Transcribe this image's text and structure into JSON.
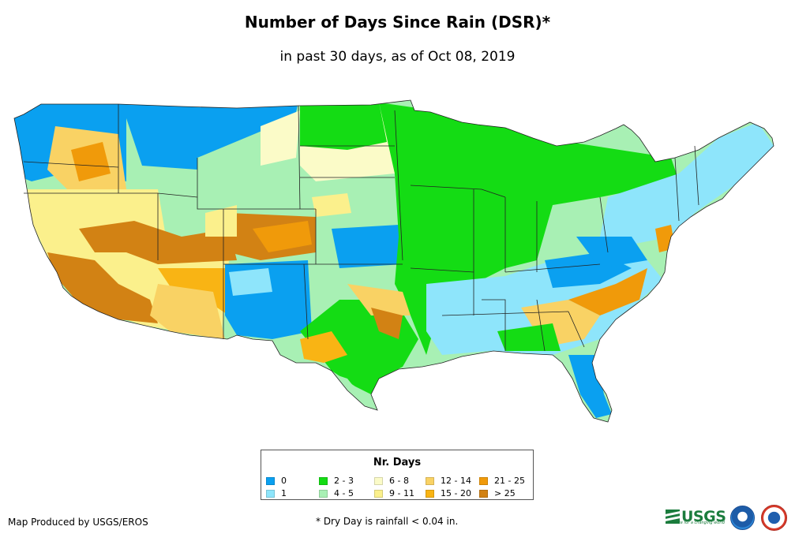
{
  "title": "Number of Days Since Rain (DSR)*",
  "subtitle": "in past 30 days, as of Oct 08, 2019",
  "legend": {
    "title": "Nr. Days",
    "items": [
      {
        "label": "0",
        "color": "#0aa0f0"
      },
      {
        "label": "1",
        "color": "#8ee5fb"
      },
      {
        "label": "2 - 3",
        "color": "#14dc14"
      },
      {
        "label": "4 - 5",
        "color": "#a8f0b4"
      },
      {
        "label": "6 - 8",
        "color": "#fbfbc8"
      },
      {
        "label": "9 - 11",
        "color": "#fbf08c"
      },
      {
        "label": "12 - 14",
        "color": "#f9d264"
      },
      {
        "label": "15 - 20",
        "color": "#f9b414"
      },
      {
        "label": "21 - 25",
        "color": "#f09a0a"
      },
      {
        "label": "> 25",
        "color": "#d28214"
      }
    ]
  },
  "credit": "Map Produced by USGS/EROS",
  "footnote": "* Dry Day is rainfall < 0.04 in.",
  "logos": {
    "usgs_text": "USGS",
    "usgs_tagline": "science for a changing world",
    "noaa_icon": "noaa-logo",
    "nws_icon": "nws-logo"
  }
}
